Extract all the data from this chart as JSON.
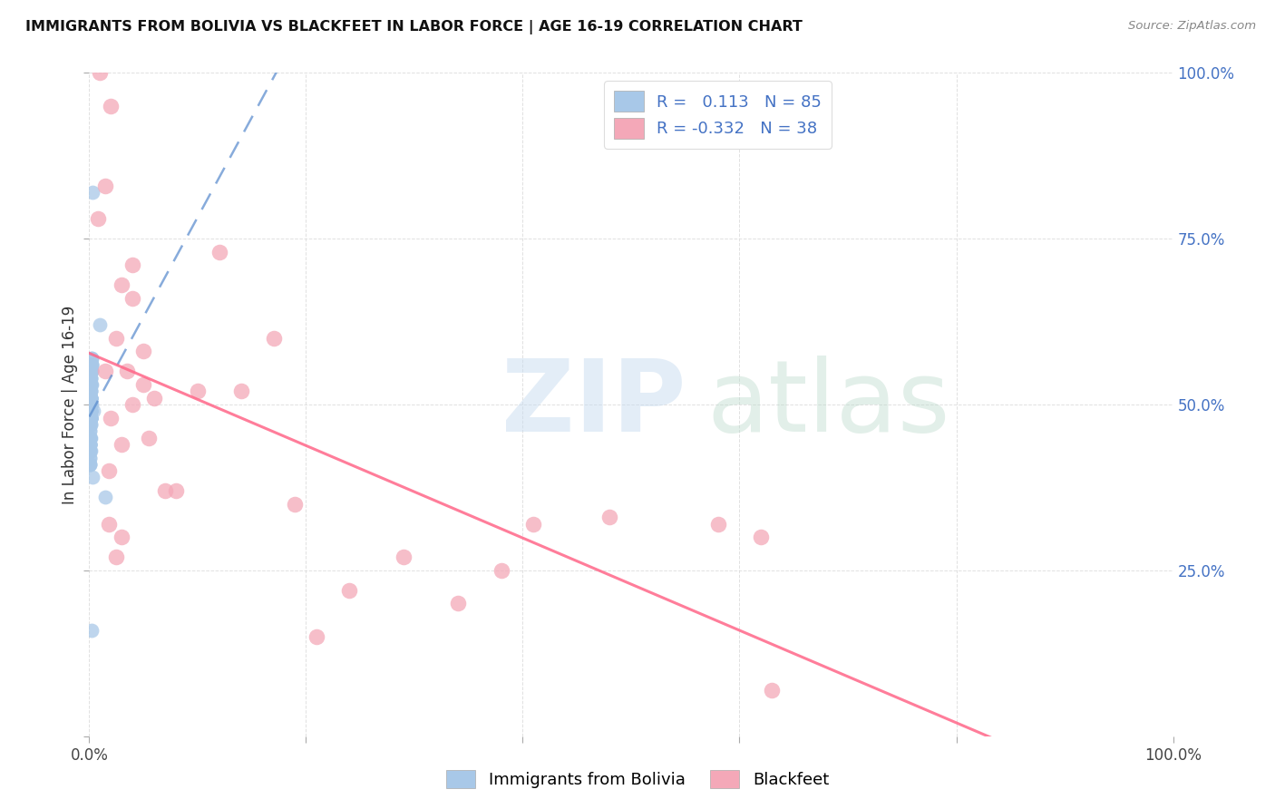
{
  "title": "IMMIGRANTS FROM BOLIVIA VS BLACKFEET IN LABOR FORCE | AGE 16-19 CORRELATION CHART",
  "source": "Source: ZipAtlas.com",
  "ylabel": "In Labor Force | Age 16-19",
  "xlim": [
    0,
    100
  ],
  "ylim": [
    0,
    100
  ],
  "ytick_vals": [
    0,
    25,
    50,
    75,
    100
  ],
  "ytick_labels": [
    "",
    "25.0%",
    "50.0%",
    "75.0%",
    "100.0%"
  ],
  "xtick_vals": [
    0,
    20,
    40,
    60,
    80,
    100
  ],
  "xtick_labels": [
    "0.0%",
    "",
    "",
    "",
    "",
    "100.0%"
  ],
  "legend_labels": [
    "Immigrants from Bolivia",
    "Blackfeet"
  ],
  "blue_R": "0.113",
  "blue_N": "85",
  "pink_R": "-0.332",
  "pink_N": "38",
  "blue_color": "#A8C8E8",
  "pink_color": "#F4A8B8",
  "blue_line_color": "#5588CC",
  "pink_line_color": "#FF6688",
  "grid_color": "#DDDDDD",
  "bolivia_x": [
    0.1,
    0.15,
    0.05,
    0.2,
    0.1,
    0.08,
    0.12,
    0.18,
    0.3,
    0.1,
    0.05,
    0.12,
    0.08,
    0.15,
    0.1,
    0.06,
    0.1,
    0.15,
    0.08,
    0.2,
    0.1,
    0.08,
    0.05,
    0.12,
    0.1,
    0.15,
    0.2,
    0.08,
    0.1,
    0.12,
    0.05,
    0.08,
    0.15,
    0.1,
    0.12,
    0.08,
    0.18,
    0.1,
    0.08,
    0.12,
    0.05,
    0.1,
    0.08,
    0.15,
    0.12,
    0.1,
    0.08,
    0.18,
    0.05,
    0.12,
    0.1,
    0.15,
    0.08,
    0.2,
    0.1,
    0.12,
    0.08,
    0.05,
    0.15,
    0.1,
    0.18,
    0.08,
    0.12,
    0.1,
    0.05,
    0.08,
    0.15,
    0.1,
    0.12,
    0.08,
    0.18,
    1.0,
    0.08,
    0.12,
    0.1,
    0.15,
    0.4,
    0.25,
    0.1,
    0.08,
    1.5,
    0.05,
    0.1,
    0.3,
    0.2
  ],
  "bolivia_y": [
    49,
    48,
    46,
    53,
    51,
    44,
    56,
    50,
    82,
    47,
    42,
    52,
    54,
    49,
    45,
    41,
    48,
    51,
    43,
    55,
    50,
    47,
    44,
    53,
    49,
    52,
    57,
    46,
    48,
    51,
    43,
    45,
    54,
    49,
    51,
    44,
    56,
    48,
    45,
    51,
    42,
    47,
    44,
    53,
    50,
    49,
    45,
    55,
    41,
    52,
    48,
    54,
    44,
    57,
    49,
    51,
    45,
    43,
    53,
    48,
    55,
    44,
    51,
    48,
    43,
    45,
    54,
    49,
    51,
    44,
    56,
    62,
    45,
    51,
    48,
    53,
    49,
    56,
    48,
    45,
    36,
    41,
    43,
    39,
    16
  ],
  "blackfeet_x": [
    1.0,
    2.0,
    3.0,
    1.5,
    4.0,
    2.5,
    5.0,
    0.8,
    8.0,
    1.8,
    3.0,
    5.0,
    4.0,
    1.5,
    6.0,
    2.0,
    12.0,
    4.0,
    3.0,
    1.8,
    10.0,
    2.5,
    17.0,
    5.5,
    19.0,
    58.0,
    62.0,
    63.0,
    24.0,
    34.0,
    41.0,
    48.0,
    3.5,
    7.0,
    14.0,
    29.0,
    38.0,
    21.0
  ],
  "blackfeet_y": [
    100,
    95,
    68,
    83,
    71,
    60,
    58,
    78,
    37,
    32,
    44,
    53,
    50,
    55,
    51,
    48,
    73,
    66,
    30,
    40,
    52,
    27,
    60,
    45,
    35,
    32,
    30,
    7,
    22,
    20,
    32,
    33,
    55,
    37,
    52,
    27,
    25,
    15
  ],
  "blue_line_x0": 0,
  "blue_line_y0": 40,
  "blue_line_x1": 100,
  "blue_line_y1": 100,
  "pink_line_x0": 0,
  "pink_line_y0": 52,
  "pink_line_x1": 100,
  "pink_line_y1": 25
}
